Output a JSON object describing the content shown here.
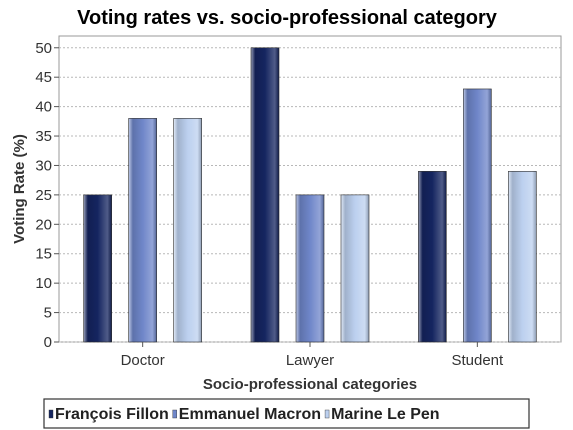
{
  "chart_data": {
    "type": "bar",
    "title": "Voting rates vs. socio-professional category",
    "xlabel": "Socio-professional categories",
    "ylabel": "Voting Rate (%)",
    "categories": [
      "Doctor",
      "Lawyer",
      "Student"
    ],
    "series": [
      {
        "name": "François Fillon",
        "values": [
          25,
          50,
          29
        ],
        "color": "#152560"
      },
      {
        "name": "Emmanuel Macron",
        "values": [
          38,
          25,
          43
        ],
        "color": "#6f86c9"
      },
      {
        "name": "Marine Le Pen",
        "values": [
          38,
          25,
          29
        ],
        "color": "#bcd0ef"
      }
    ],
    "ylim": [
      0,
      52
    ],
    "yticks": [
      0,
      5,
      10,
      15,
      20,
      25,
      30,
      35,
      40,
      45,
      50
    ],
    "grid": true,
    "legend_position": "bottom"
  }
}
